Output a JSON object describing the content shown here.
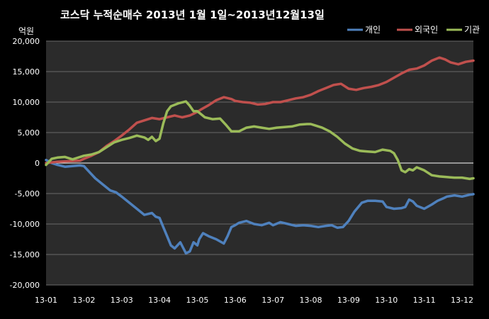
{
  "chart_data": {
    "type": "line",
    "title": "코스닥 누적순매수 2013년 1월 1일~2013년12월13일",
    "ylabel": "억원",
    "ylim": [
      -20000,
      20000
    ],
    "yticks": [
      "20,000",
      "15,000",
      "10,000",
      "5,000",
      "0",
      "-5,000",
      "-10,000",
      "-15,000",
      "-20,000"
    ],
    "xticks": [
      "13-01",
      "13-02",
      "13-03",
      "13-04",
      "13-05",
      "13-06",
      "13-07",
      "13-08",
      "13-09",
      "13-10",
      "13-11",
      "13-12"
    ],
    "grid": true,
    "legend": "top-right",
    "series": [
      {
        "name": "개인",
        "color": "#4f81bd",
        "points": [
          [
            0,
            500
          ],
          [
            0.15,
            0
          ],
          [
            0.3,
            -300
          ],
          [
            0.5,
            -600
          ],
          [
            0.7,
            -500
          ],
          [
            0.9,
            -400
          ],
          [
            1.0,
            -500
          ],
          [
            1.15,
            -1500
          ],
          [
            1.3,
            -2500
          ],
          [
            1.5,
            -3500
          ],
          [
            1.7,
            -4500
          ],
          [
            1.85,
            -4800
          ],
          [
            2.0,
            -5500
          ],
          [
            2.2,
            -6500
          ],
          [
            2.4,
            -7500
          ],
          [
            2.6,
            -8500
          ],
          [
            2.8,
            -8200
          ],
          [
            2.9,
            -8800
          ],
          [
            3.0,
            -9000
          ],
          [
            3.1,
            -10500
          ],
          [
            3.2,
            -12000
          ],
          [
            3.3,
            -13500
          ],
          [
            3.4,
            -14000
          ],
          [
            3.55,
            -13000
          ],
          [
            3.7,
            -14800
          ],
          [
            3.8,
            -14500
          ],
          [
            3.9,
            -13000
          ],
          [
            4.0,
            -13500
          ],
          [
            4.05,
            -12500
          ],
          [
            4.15,
            -11500
          ],
          [
            4.3,
            -12000
          ],
          [
            4.5,
            -12500
          ],
          [
            4.7,
            -13200
          ],
          [
            4.8,
            -12000
          ],
          [
            4.9,
            -10500
          ],
          [
            5.0,
            -10200
          ],
          [
            5.1,
            -9800
          ],
          [
            5.3,
            -9500
          ],
          [
            5.5,
            -10000
          ],
          [
            5.7,
            -10200
          ],
          [
            5.9,
            -9800
          ],
          [
            6.0,
            -10200
          ],
          [
            6.2,
            -9700
          ],
          [
            6.4,
            -10000
          ],
          [
            6.6,
            -10300
          ],
          [
            6.8,
            -10200
          ],
          [
            7.0,
            -10300
          ],
          [
            7.2,
            -10500
          ],
          [
            7.4,
            -10300
          ],
          [
            7.55,
            -10200
          ],
          [
            7.7,
            -10600
          ],
          [
            7.85,
            -10500
          ],
          [
            8.0,
            -9500
          ],
          [
            8.15,
            -8000
          ],
          [
            8.35,
            -6500
          ],
          [
            8.5,
            -6200
          ],
          [
            8.7,
            -6200
          ],
          [
            8.9,
            -6300
          ],
          [
            9.0,
            -7200
          ],
          [
            9.2,
            -7500
          ],
          [
            9.4,
            -7400
          ],
          [
            9.5,
            -7200
          ],
          [
            9.6,
            -6000
          ],
          [
            9.7,
            -6300
          ],
          [
            9.8,
            -7000
          ],
          [
            10.0,
            -7500
          ],
          [
            10.2,
            -6800
          ],
          [
            10.35,
            -6200
          ],
          [
            10.5,
            -5800
          ],
          [
            10.6,
            -5500
          ],
          [
            10.8,
            -5300
          ],
          [
            11.0,
            -5500
          ],
          [
            11.2,
            -5200
          ],
          [
            11.3,
            -5100
          ]
        ]
      },
      {
        "name": "외국인",
        "color": "#c0504d",
        "points": [
          [
            0,
            0
          ],
          [
            0.3,
            200
          ],
          [
            0.6,
            300
          ],
          [
            0.9,
            400
          ],
          [
            1.0,
            700
          ],
          [
            1.2,
            1200
          ],
          [
            1.4,
            1800
          ],
          [
            1.6,
            2800
          ],
          [
            1.8,
            3600
          ],
          [
            2.0,
            4500
          ],
          [
            2.2,
            5500
          ],
          [
            2.4,
            6600
          ],
          [
            2.6,
            7000
          ],
          [
            2.8,
            7400
          ],
          [
            3.0,
            7200
          ],
          [
            3.2,
            7500
          ],
          [
            3.4,
            7800
          ],
          [
            3.6,
            7500
          ],
          [
            3.8,
            7800
          ],
          [
            4.0,
            8400
          ],
          [
            4.1,
            8800
          ],
          [
            4.3,
            9500
          ],
          [
            4.5,
            10300
          ],
          [
            4.7,
            10800
          ],
          [
            4.9,
            10500
          ],
          [
            5.0,
            10200
          ],
          [
            5.2,
            10000
          ],
          [
            5.4,
            9900
          ],
          [
            5.6,
            9600
          ],
          [
            5.8,
            9700
          ],
          [
            6.0,
            10000
          ],
          [
            6.2,
            10000
          ],
          [
            6.4,
            10300
          ],
          [
            6.6,
            10600
          ],
          [
            6.8,
            10800
          ],
          [
            7.0,
            11200
          ],
          [
            7.2,
            11800
          ],
          [
            7.4,
            12300
          ],
          [
            7.6,
            12800
          ],
          [
            7.8,
            13000
          ],
          [
            8.0,
            12200
          ],
          [
            8.2,
            12000
          ],
          [
            8.4,
            12300
          ],
          [
            8.6,
            12500
          ],
          [
            8.8,
            12800
          ],
          [
            9.0,
            13300
          ],
          [
            9.2,
            14000
          ],
          [
            9.4,
            14700
          ],
          [
            9.6,
            15300
          ],
          [
            9.8,
            15500
          ],
          [
            10.0,
            16000
          ],
          [
            10.2,
            16800
          ],
          [
            10.4,
            17300
          ],
          [
            10.55,
            17000
          ],
          [
            10.7,
            16500
          ],
          [
            10.9,
            16200
          ],
          [
            11.1,
            16600
          ],
          [
            11.3,
            16800
          ]
        ]
      },
      {
        "name": "기관",
        "color": "#9bbb59",
        "points": [
          [
            0,
            -300
          ],
          [
            0.15,
            700
          ],
          [
            0.3,
            900
          ],
          [
            0.5,
            1000
          ],
          [
            0.7,
            600
          ],
          [
            0.9,
            1000
          ],
          [
            1.0,
            1200
          ],
          [
            1.2,
            1400
          ],
          [
            1.4,
            1800
          ],
          [
            1.6,
            2600
          ],
          [
            1.8,
            3400
          ],
          [
            2.0,
            3800
          ],
          [
            2.2,
            4100
          ],
          [
            2.4,
            4500
          ],
          [
            2.6,
            4200
          ],
          [
            2.7,
            3800
          ],
          [
            2.8,
            4300
          ],
          [
            2.9,
            3600
          ],
          [
            3.0,
            4000
          ],
          [
            3.1,
            6500
          ],
          [
            3.2,
            8500
          ],
          [
            3.3,
            9300
          ],
          [
            3.5,
            9800
          ],
          [
            3.7,
            10100
          ],
          [
            3.8,
            9400
          ],
          [
            3.9,
            8500
          ],
          [
            4.0,
            8500
          ],
          [
            4.2,
            7500
          ],
          [
            4.4,
            7200
          ],
          [
            4.6,
            7300
          ],
          [
            4.75,
            6300
          ],
          [
            4.9,
            5200
          ],
          [
            5.1,
            5200
          ],
          [
            5.3,
            5800
          ],
          [
            5.5,
            6000
          ],
          [
            5.7,
            5800
          ],
          [
            5.9,
            5600
          ],
          [
            6.1,
            5800
          ],
          [
            6.3,
            5900
          ],
          [
            6.5,
            6000
          ],
          [
            6.7,
            6300
          ],
          [
            6.9,
            6400
          ],
          [
            7.0,
            6400
          ],
          [
            7.1,
            6200
          ],
          [
            7.3,
            5800
          ],
          [
            7.5,
            5200
          ],
          [
            7.7,
            4300
          ],
          [
            7.9,
            3200
          ],
          [
            8.1,
            2400
          ],
          [
            8.3,
            2000
          ],
          [
            8.5,
            1900
          ],
          [
            8.7,
            1800
          ],
          [
            8.9,
            2200
          ],
          [
            9.1,
            2000
          ],
          [
            9.2,
            1600
          ],
          [
            9.3,
            500
          ],
          [
            9.4,
            -1200
          ],
          [
            9.5,
            -1500
          ],
          [
            9.6,
            -1000
          ],
          [
            9.7,
            -1200
          ],
          [
            9.8,
            -700
          ],
          [
            10.0,
            -1200
          ],
          [
            10.2,
            -2000
          ],
          [
            10.4,
            -2200
          ],
          [
            10.6,
            -2300
          ],
          [
            10.8,
            -2400
          ],
          [
            11.0,
            -2400
          ],
          [
            11.2,
            -2600
          ],
          [
            11.3,
            -2500
          ]
        ]
      }
    ]
  }
}
